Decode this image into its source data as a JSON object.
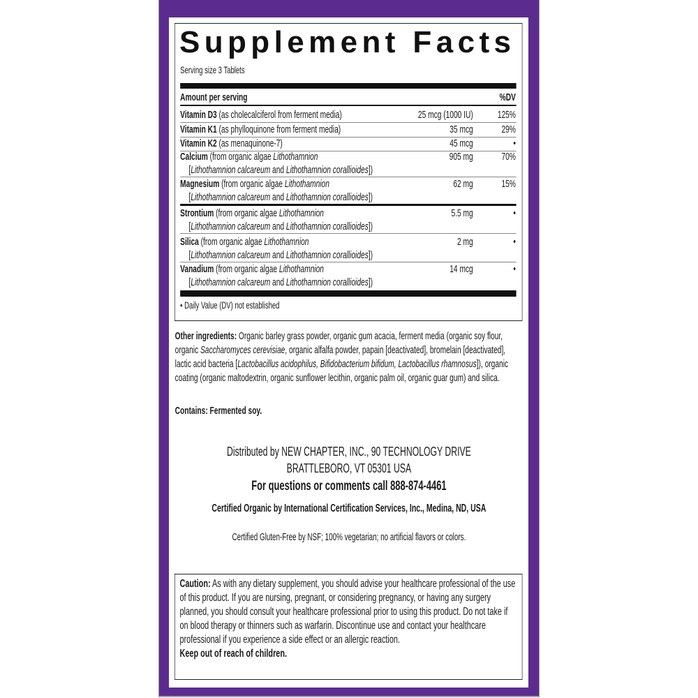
{
  "colors": {
    "frame": "#5c2b90",
    "text": "#1a1a1a"
  },
  "facts": {
    "title": "Supplement Facts",
    "serving_size": "Serving size 3 Tablets",
    "header_amount": "Amount per serving",
    "header_dv": "%DV",
    "rows": [
      {
        "name": "Vitamin D3",
        "line1": [
          {
            "t": " (as cholecalciferol from ferment media)"
          }
        ],
        "amount": "25 mcg (1000 IU)",
        "dv": "125%"
      },
      {
        "name": "Vitamin K1",
        "line1": [
          {
            "t": " (as phylloquinone from ferment media)"
          }
        ],
        "amount": "35 mcg",
        "dv": "29%"
      },
      {
        "name": "Vitamin K2",
        "line1": [
          {
            "t": " (as menaquinone-7)"
          }
        ],
        "amount": "45 mcg",
        "dv": "•"
      },
      {
        "name": "Calcium",
        "line1": [
          {
            "t": " (from organic algae "
          },
          {
            "t": "Lithothamnion",
            "i": true
          }
        ],
        "line2": [
          {
            "t": "["
          },
          {
            "t": "Lithothamnion calcareum",
            "i": true
          },
          {
            "t": " and "
          },
          {
            "t": "Lithothamnion corallioides",
            "i": true
          },
          {
            "t": "])"
          }
        ],
        "amount": "905 mg",
        "dv": "70%"
      },
      {
        "name": "Magnesium",
        "line1": [
          {
            "t": " (from organic algae "
          },
          {
            "t": "Lithothamnion",
            "i": true
          }
        ],
        "line2": [
          {
            "t": "["
          },
          {
            "t": "Lithothamnion calcareum",
            "i": true
          },
          {
            "t": " and "
          },
          {
            "t": "Lithothamnion corallioides",
            "i": true
          },
          {
            "t": "])"
          }
        ],
        "amount": "62 mg",
        "dv": "15%"
      },
      {
        "name": "Strontium",
        "line1": [
          {
            "t": " (from organic algae "
          },
          {
            "t": "Lithothamnion",
            "i": true
          }
        ],
        "line2": [
          {
            "t": "["
          },
          {
            "t": "Lithothamnion calcareum",
            "i": true
          },
          {
            "t": " and "
          },
          {
            "t": "Lithothamnion corallioides",
            "i": true
          },
          {
            "t": "])"
          }
        ],
        "amount": "5.5 mg",
        "dv": "•"
      },
      {
        "name": "Silica",
        "line1": [
          {
            "t": " (from organic algae "
          },
          {
            "t": "Lithothamnion",
            "i": true
          }
        ],
        "line2": [
          {
            "t": "["
          },
          {
            "t": "Lithothamnion calcareum",
            "i": true
          },
          {
            "t": " and "
          },
          {
            "t": "Lithothamnion corallioides",
            "i": true
          },
          {
            "t": "])"
          }
        ],
        "amount": "2 mg",
        "dv": "•"
      },
      {
        "name": "Vanadium",
        "line1": [
          {
            "t": " (from organic algae "
          },
          {
            "t": "Lithothamnion",
            "i": true
          }
        ],
        "line2": [
          {
            "t": "["
          },
          {
            "t": "Lithothamnion calcareum",
            "i": true
          },
          {
            "t": " and "
          },
          {
            "t": "Lithothamnion corallioides",
            "i": true
          },
          {
            "t": "])"
          }
        ],
        "amount": "14 mcg",
        "dv": "•"
      }
    ],
    "footnote": "•  Daily Value (DV) not established"
  },
  "other_ingredients": {
    "label": "Other ingredients:",
    "segments": [
      {
        "t": " Organic barley grass powder, organic gum acacia, ferment media (organic soy flour, organic "
      },
      {
        "t": "Saccharomyces cerevisiae",
        "i": true
      },
      {
        "t": ", organic alfalfa powder, papain [deactivated], bromelain [deactivated], lactic acid bacteria ["
      },
      {
        "t": "Lactobacillus acidophilus, Bifidobacterium bifidum, Lactobacillus rhamnosus",
        "i": true
      },
      {
        "t": "]), organic coating (organic maltodextrin, organic sunflower lecithin, organic palm oil, organic guar gum) and silica."
      }
    ]
  },
  "contains": {
    "label": "Contains:",
    "text": " Fermented soy."
  },
  "distributor": {
    "line1": "Distributed by NEW CHAPTER, INC., 90 TECHNOLOGY DRIVE",
    "line2": "BRATTLEBORO, VT 05301 USA",
    "questions": "For questions or comments call 888-874-4461",
    "certified_organic": "Certified Organic by International Certification Services, Inc., Medina, ND, USA",
    "gluten_free": "Certified Gluten-Free by NSF; 100% vegetarian; no artificial flavors or colors."
  },
  "caution": {
    "label": "Caution:",
    "text": " As with any dietary supplement, you should advise your healthcare professional of the use of this product. If you are nursing, pregnant, or considering pregnancy, or having any surgery planned, you should consult your healthcare professional prior to using this product. Do not take if on blood therapy or thinners such as warfarin. Discontinue use and contact your healthcare professional if you experience a side effect or an allergic reaction.",
    "keep_away": "Keep out of reach of children."
  }
}
